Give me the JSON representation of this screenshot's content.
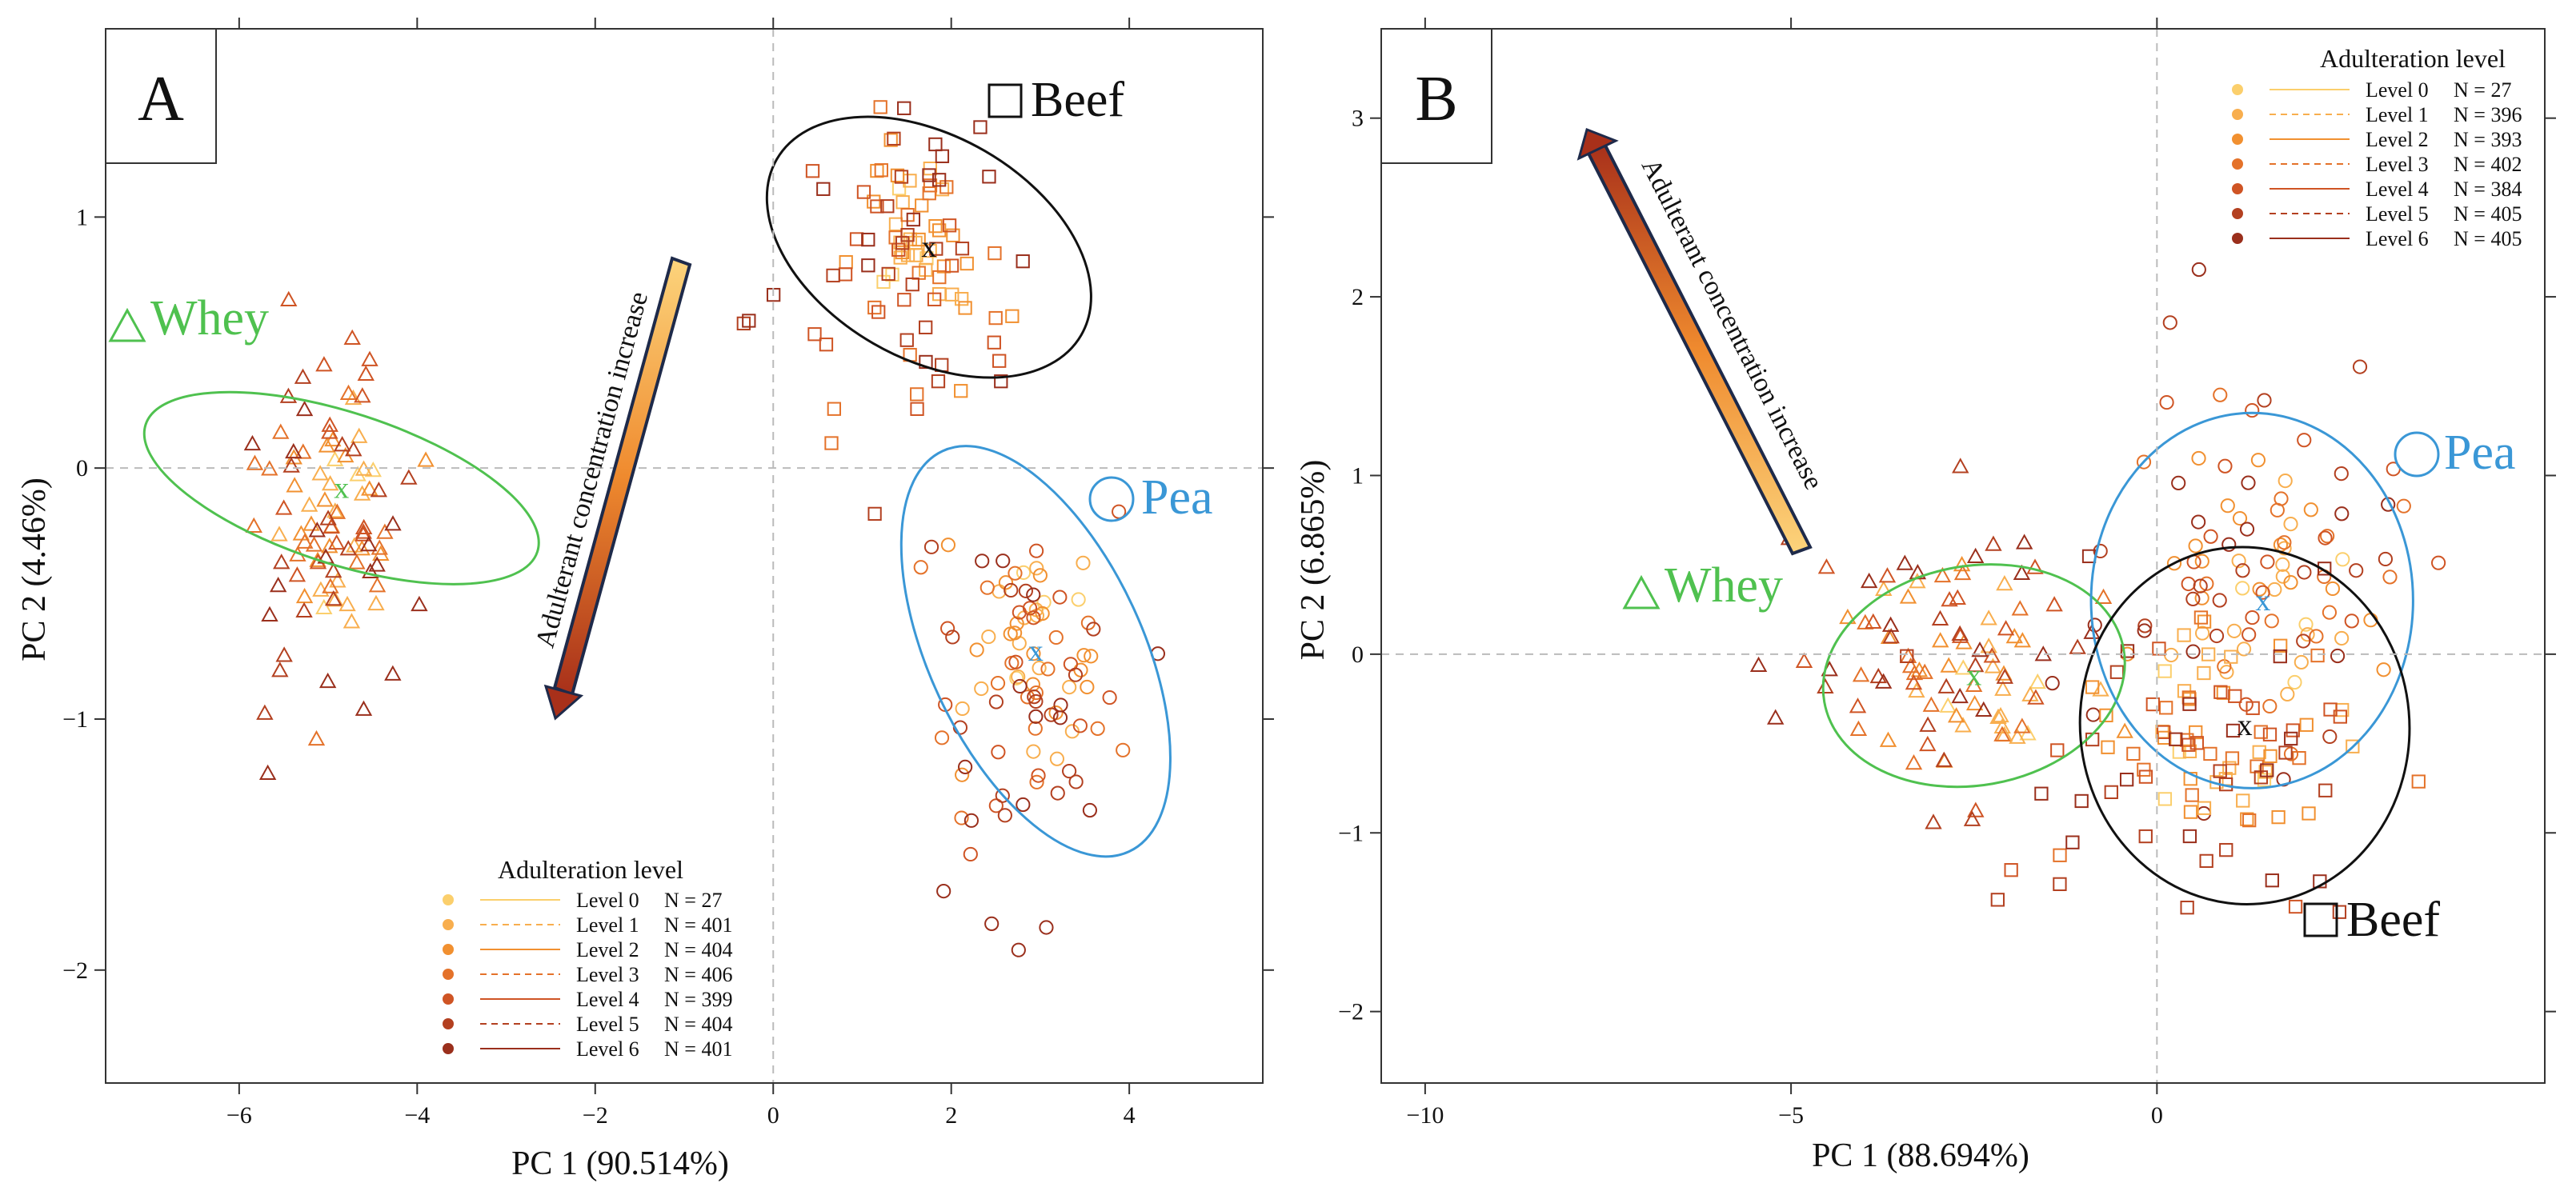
{
  "chart_data": [
    {
      "panel": "A",
      "type": "scatter",
      "xlabel": "PC 1 (90.514%)",
      "ylabel": "PC 2 (4.46%)",
      "xlim": [
        -7.5,
        5.5
      ],
      "ylim": [
        -2.45,
        1.75
      ],
      "xticks": [
        -6,
        -4,
        -2,
        0,
        2,
        4
      ],
      "yticks": [
        -2,
        -1,
        0,
        1
      ],
      "groups": [
        {
          "name": "Whey",
          "marker": "triangle",
          "color": "#4fc14f",
          "centroid": [
            -4.85,
            -0.08
          ],
          "ellipse": {
            "center": [
              -4.85,
              -0.08
            ],
            "rx": 0.85,
            "ry": 0.82,
            "tilt_deg": 72
          },
          "spread": [
            0.45,
            0.38
          ],
          "tail": [
            -5.5,
            -1.2
          ]
        },
        {
          "name": "Beef",
          "marker": "square",
          "color": "#111111",
          "centroid": [
            1.75,
            0.88
          ],
          "ellipse": {
            "center": [
              1.75,
              0.88
            ],
            "rx": 1.25,
            "ry": 0.7,
            "tilt_deg": 60
          },
          "spread": [
            0.55,
            0.3
          ],
          "tail": [
            0.4,
            0.3
          ]
        },
        {
          "name": "Pea",
          "marker": "circle",
          "color": "#3a97d6",
          "centroid": [
            2.95,
            -0.73
          ],
          "ellipse": {
            "center": [
              2.95,
              -0.73
            ],
            "rx": 1.2,
            "ry": 0.88,
            "tilt_deg": 25
          },
          "spread": [
            0.6,
            0.3
          ],
          "tail": [
            2.2,
            -1.8
          ]
        }
      ],
      "arrow_label": "Adulterant concentration increase",
      "legend": {
        "title": "Adulteration level",
        "entries": [
          {
            "label": "Level 0",
            "n": "N = 27"
          },
          {
            "label": "Level 1",
            "n": "N = 401"
          },
          {
            "label": "Level 2",
            "n": "N = 404"
          },
          {
            "label": "Level 3",
            "n": "N = 406"
          },
          {
            "label": "Level 4",
            "n": "N = 399"
          },
          {
            "label": "Level 5",
            "n": "N = 404"
          },
          {
            "label": "Level 6",
            "n": "N = 401"
          }
        ]
      }
    },
    {
      "panel": "B",
      "type": "scatter",
      "xlabel": "PC 1 (88.694%)",
      "ylabel": "PC 2 (6.865%)",
      "xlim": [
        -10.6,
        5.3
      ],
      "ylim": [
        -2.4,
        3.5
      ],
      "xticks": [
        -10,
        -5,
        0
      ],
      "yticks": [
        -2,
        -1,
        0,
        1,
        2,
        3
      ],
      "groups": [
        {
          "name": "Whey",
          "marker": "triangle",
          "color": "#4fc14f",
          "centroid": [
            -2.5,
            -0.12
          ],
          "ellipse": {
            "center": [
              -2.5,
              -0.12
            ],
            "rx": 1.5,
            "ry": 0.85,
            "tilt_deg": 100
          },
          "spread": [
            0.85,
            0.38
          ],
          "tail": [
            -4.5,
            0.5
          ]
        },
        {
          "name": "Pea",
          "marker": "circle",
          "color": "#3a97d6",
          "centroid": [
            1.45,
            0.3
          ],
          "ellipse": {
            "center": [
              1.3,
              0.3
            ],
            "rx": 2.2,
            "ry": 1.05,
            "tilt_deg": 0
          },
          "spread": [
            1.1,
            0.5
          ],
          "tail": [
            0.5,
            1.6
          ]
        },
        {
          "name": "Beef",
          "marker": "square",
          "color": "#111111",
          "centroid": [
            1.2,
            -0.4
          ],
          "ellipse": {
            "center": [
              1.2,
              -0.4
            ],
            "rx": 2.25,
            "ry": 1.0,
            "tilt_deg": 5
          },
          "spread": [
            1.2,
            0.45
          ],
          "tail": [
            -1.5,
            -1.1
          ]
        }
      ],
      "arrow_label": "Adulterant concentration increase",
      "legend": {
        "title": "Adulteration level",
        "entries": [
          {
            "label": "Level 0",
            "n": "N = 27"
          },
          {
            "label": "Level 1",
            "n": "N = 396"
          },
          {
            "label": "Level 2",
            "n": "N = 393"
          },
          {
            "label": "Level 3",
            "n": "N = 402"
          },
          {
            "label": "Level 4",
            "n": "N = 384"
          },
          {
            "label": "Level 5",
            "n": "N = 405"
          },
          {
            "label": "Level 6",
            "n": "N = 405"
          }
        ]
      }
    }
  ],
  "level_colors": [
    "#fbcf6c",
    "#f8ae4e",
    "#f19030",
    "#e4722a",
    "#cf5424",
    "#b34020",
    "#9a2f1c"
  ],
  "points_per_level_drawn": [
    4,
    16,
    16,
    16,
    16,
    16,
    16
  ],
  "labels": {
    "panel_a": "A",
    "panel_b": "B",
    "whey": "Whey",
    "beef": "Beef",
    "pea": "Pea"
  }
}
